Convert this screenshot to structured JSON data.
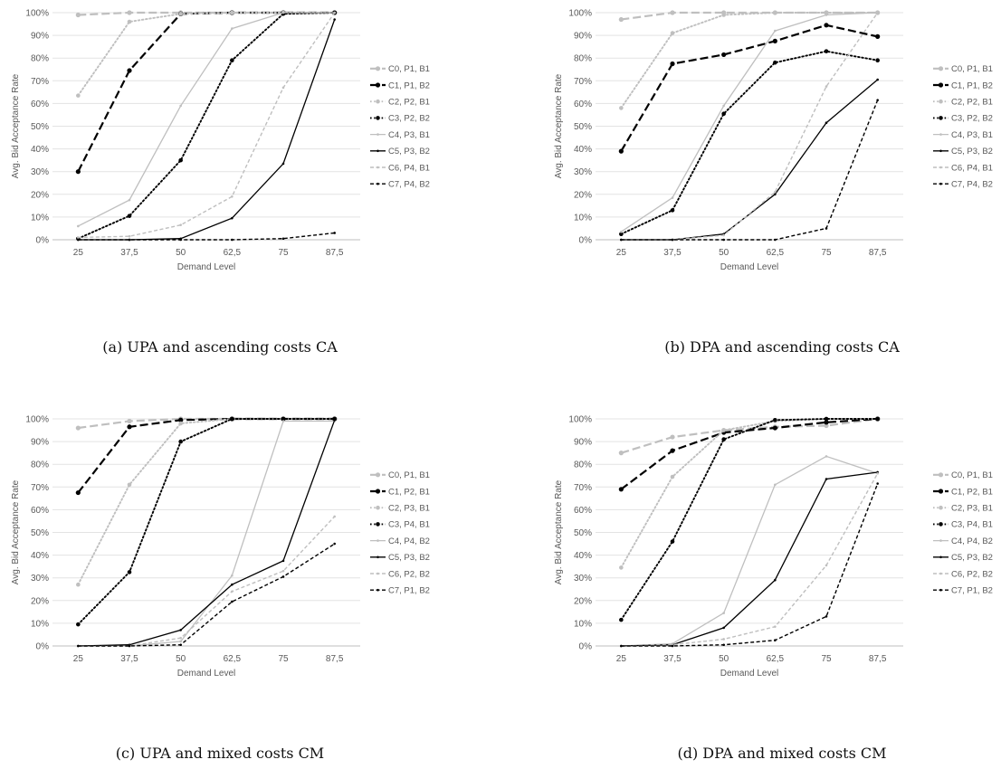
{
  "chart_data": [
    {
      "type": "line",
      "caption": "(a) UPA and ascending costs CA",
      "xlabel": "Demand Level",
      "ylabel": "Avg. Bid Acceptance Rate",
      "categories": [
        "25",
        "37,5",
        "50",
        "62,5",
        "75",
        "87,5"
      ],
      "yticks": [
        "0%",
        "10%",
        "20%",
        "30%",
        "40%",
        "50%",
        "60%",
        "70%",
        "80%",
        "90%",
        "100%"
      ],
      "ylim": [
        0,
        100
      ],
      "legend_position": "right",
      "series": [
        {
          "name": "C0, P1, B1",
          "color": "#BFBFBF",
          "style": "longdash",
          "values": [
            99,
            100,
            100,
            100,
            100,
            100
          ]
        },
        {
          "name": "C1, P1, B2",
          "color": "#000000",
          "style": "longdash",
          "values": [
            30,
            74.5,
            99.5,
            100,
            100,
            100
          ]
        },
        {
          "name": "C2, P2, B1",
          "color": "#BFBFBF",
          "style": "dot",
          "values": [
            63.5,
            96,
            99.5,
            100,
            100,
            100
          ]
        },
        {
          "name": "C3, P2, B2",
          "color": "#000000",
          "style": "dot",
          "values": [
            0.5,
            10.5,
            35,
            79,
            99.5,
            100
          ]
        },
        {
          "name": "C4, P3, B1",
          "color": "#BFBFBF",
          "style": "solid",
          "values": [
            6,
            17.5,
            59,
            93,
            100,
            100
          ]
        },
        {
          "name": "C5, P3, B2",
          "color": "#000000",
          "style": "solid",
          "values": [
            0,
            0,
            0.5,
            9.5,
            33.5,
            97
          ]
        },
        {
          "name": "C6, P4, B1",
          "color": "#BFBFBF",
          "style": "dash",
          "values": [
            1,
            1.5,
            6.5,
            19,
            67,
            100
          ]
        },
        {
          "name": "C7, P4, B2",
          "color": "#000000",
          "style": "dash",
          "values": [
            0,
            0,
            0,
            0,
            0.5,
            3
          ]
        }
      ]
    },
    {
      "type": "line",
      "caption": "(b) DPA and ascending costs CA",
      "xlabel": "Demand Level",
      "ylabel": "Avg. Bid Acceptance Rate",
      "categories": [
        "25",
        "37,5",
        "50",
        "62,5",
        "75",
        "87,5"
      ],
      "yticks": [
        "0%",
        "10%",
        "20%",
        "30%",
        "40%",
        "50%",
        "60%",
        "70%",
        "80%",
        "90%",
        "100%"
      ],
      "ylim": [
        0,
        100
      ],
      "legend_position": "right",
      "series": [
        {
          "name": "C0, P1, B1",
          "color": "#BFBFBF",
          "style": "longdash",
          "values": [
            97,
            100,
            100,
            100,
            100,
            100
          ]
        },
        {
          "name": "C1, P1, B2",
          "color": "#000000",
          "style": "longdash",
          "values": [
            39,
            77.5,
            81.5,
            87.5,
            94.5,
            89.5
          ]
        },
        {
          "name": "C2, P2, B1",
          "color": "#BFBFBF",
          "style": "dot",
          "values": [
            58,
            91,
            99,
            100,
            100,
            100
          ]
        },
        {
          "name": "C3, P2, B2",
          "color": "#000000",
          "style": "dot",
          "values": [
            2.5,
            13,
            55.5,
            78,
            83,
            79
          ]
        },
        {
          "name": "C4, P3, B1",
          "color": "#BFBFBF",
          "style": "solid",
          "values": [
            3.5,
            18.5,
            59,
            92,
            99,
            100
          ]
        },
        {
          "name": "C5, P3, B2",
          "color": "#000000",
          "style": "solid",
          "values": [
            0,
            0,
            2.5,
            20,
            51.5,
            70.5
          ]
        },
        {
          "name": "C6, P4, B1",
          "color": "#BFBFBF",
          "style": "dash",
          "values": [
            0,
            0,
            2,
            21,
            67.5,
            100
          ]
        },
        {
          "name": "C7, P4, B2",
          "color": "#000000",
          "style": "dash",
          "values": [
            0,
            0,
            0,
            0,
            5,
            61.5
          ]
        }
      ]
    },
    {
      "type": "line",
      "caption": "(c) UPA and mixed costs CM",
      "xlabel": "Demand Level",
      "ylabel": "Avg. Bid Acceptance Rate",
      "categories": [
        "25",
        "37,5",
        "50",
        "62,5",
        "75",
        "87,5"
      ],
      "yticks": [
        "0%",
        "10%",
        "20%",
        "30%",
        "40%",
        "50%",
        "60%",
        "70%",
        "80%",
        "90%",
        "100%"
      ],
      "ylim": [
        0,
        100
      ],
      "legend_position": "right",
      "series": [
        {
          "name": "C0, P1, B1",
          "color": "#BFBFBF",
          "style": "longdash",
          "values": [
            96,
            99,
            100,
            100,
            100,
            100
          ]
        },
        {
          "name": "C1, P2, B1",
          "color": "#000000",
          "style": "longdash",
          "values": [
            67.5,
            96.5,
            99.5,
            100,
            100,
            100
          ]
        },
        {
          "name": "C2, P3, B1",
          "color": "#BFBFBF",
          "style": "dot",
          "values": [
            27,
            71,
            98,
            100,
            100,
            100
          ]
        },
        {
          "name": "C3, P4, B1",
          "color": "#000000",
          "style": "dot",
          "values": [
            9.5,
            32.5,
            90,
            100,
            100,
            100
          ]
        },
        {
          "name": "C4, P4, B2",
          "color": "#BFBFBF",
          "style": "solid",
          "values": [
            0,
            0,
            2,
            31,
            99,
            99
          ]
        },
        {
          "name": "C5, P3, B2",
          "color": "#000000",
          "style": "solid",
          "values": [
            0,
            0.5,
            7,
            27,
            37.5,
            99.5
          ]
        },
        {
          "name": "C6, P2, B2",
          "color": "#BFBFBF",
          "style": "dash",
          "values": [
            0,
            0,
            3.5,
            24,
            33,
            57
          ]
        },
        {
          "name": "C7, P1, B2",
          "color": "#000000",
          "style": "dash",
          "values": [
            0,
            0,
            0.5,
            19.5,
            30.5,
            45
          ]
        }
      ]
    },
    {
      "type": "line",
      "caption": "(d) DPA and mixed costs CM",
      "xlabel": "Demand Level",
      "ylabel": "Avg. Bid Acceptance Rate",
      "categories": [
        "25",
        "37,5",
        "50",
        "62,5",
        "75",
        "87,5"
      ],
      "yticks": [
        "0%",
        "10%",
        "20%",
        "30%",
        "40%",
        "50%",
        "60%",
        "70%",
        "80%",
        "90%",
        "100%"
      ],
      "ylim": [
        0,
        100
      ],
      "legend_position": "right",
      "series": [
        {
          "name": "C0, P1, B1",
          "color": "#BFBFBF",
          "style": "longdash",
          "values": [
            85,
            92,
            95,
            96.5,
            97,
            100
          ]
        },
        {
          "name": "C1, P2, B1",
          "color": "#000000",
          "style": "longdash",
          "values": [
            69,
            86,
            94,
            96,
            98.5,
            100
          ]
        },
        {
          "name": "C2, P3, B1",
          "color": "#BFBFBF",
          "style": "dot",
          "values": [
            34.5,
            74.5,
            95,
            99,
            100,
            100
          ]
        },
        {
          "name": "C3, P4, B1",
          "color": "#000000",
          "style": "dot",
          "values": [
            11.5,
            46,
            91,
            99.5,
            100,
            100
          ]
        },
        {
          "name": "C4, P4, B2",
          "color": "#BFBFBF",
          "style": "solid",
          "values": [
            0,
            1,
            14.5,
            71,
            83.5,
            76
          ]
        },
        {
          "name": "C5, P3, B2",
          "color": "#000000",
          "style": "solid",
          "values": [
            0,
            0.5,
            8,
            29,
            73.5,
            76.5
          ]
        },
        {
          "name": "C6, P2, B2",
          "color": "#BFBFBF",
          "style": "dash",
          "values": [
            0,
            0.5,
            3,
            8.5,
            35.5,
            76
          ]
        },
        {
          "name": "C7, P1, B2",
          "color": "#000000",
          "style": "dash",
          "values": [
            0,
            0,
            0.5,
            2.5,
            13,
            71.5
          ]
        }
      ]
    }
  ]
}
